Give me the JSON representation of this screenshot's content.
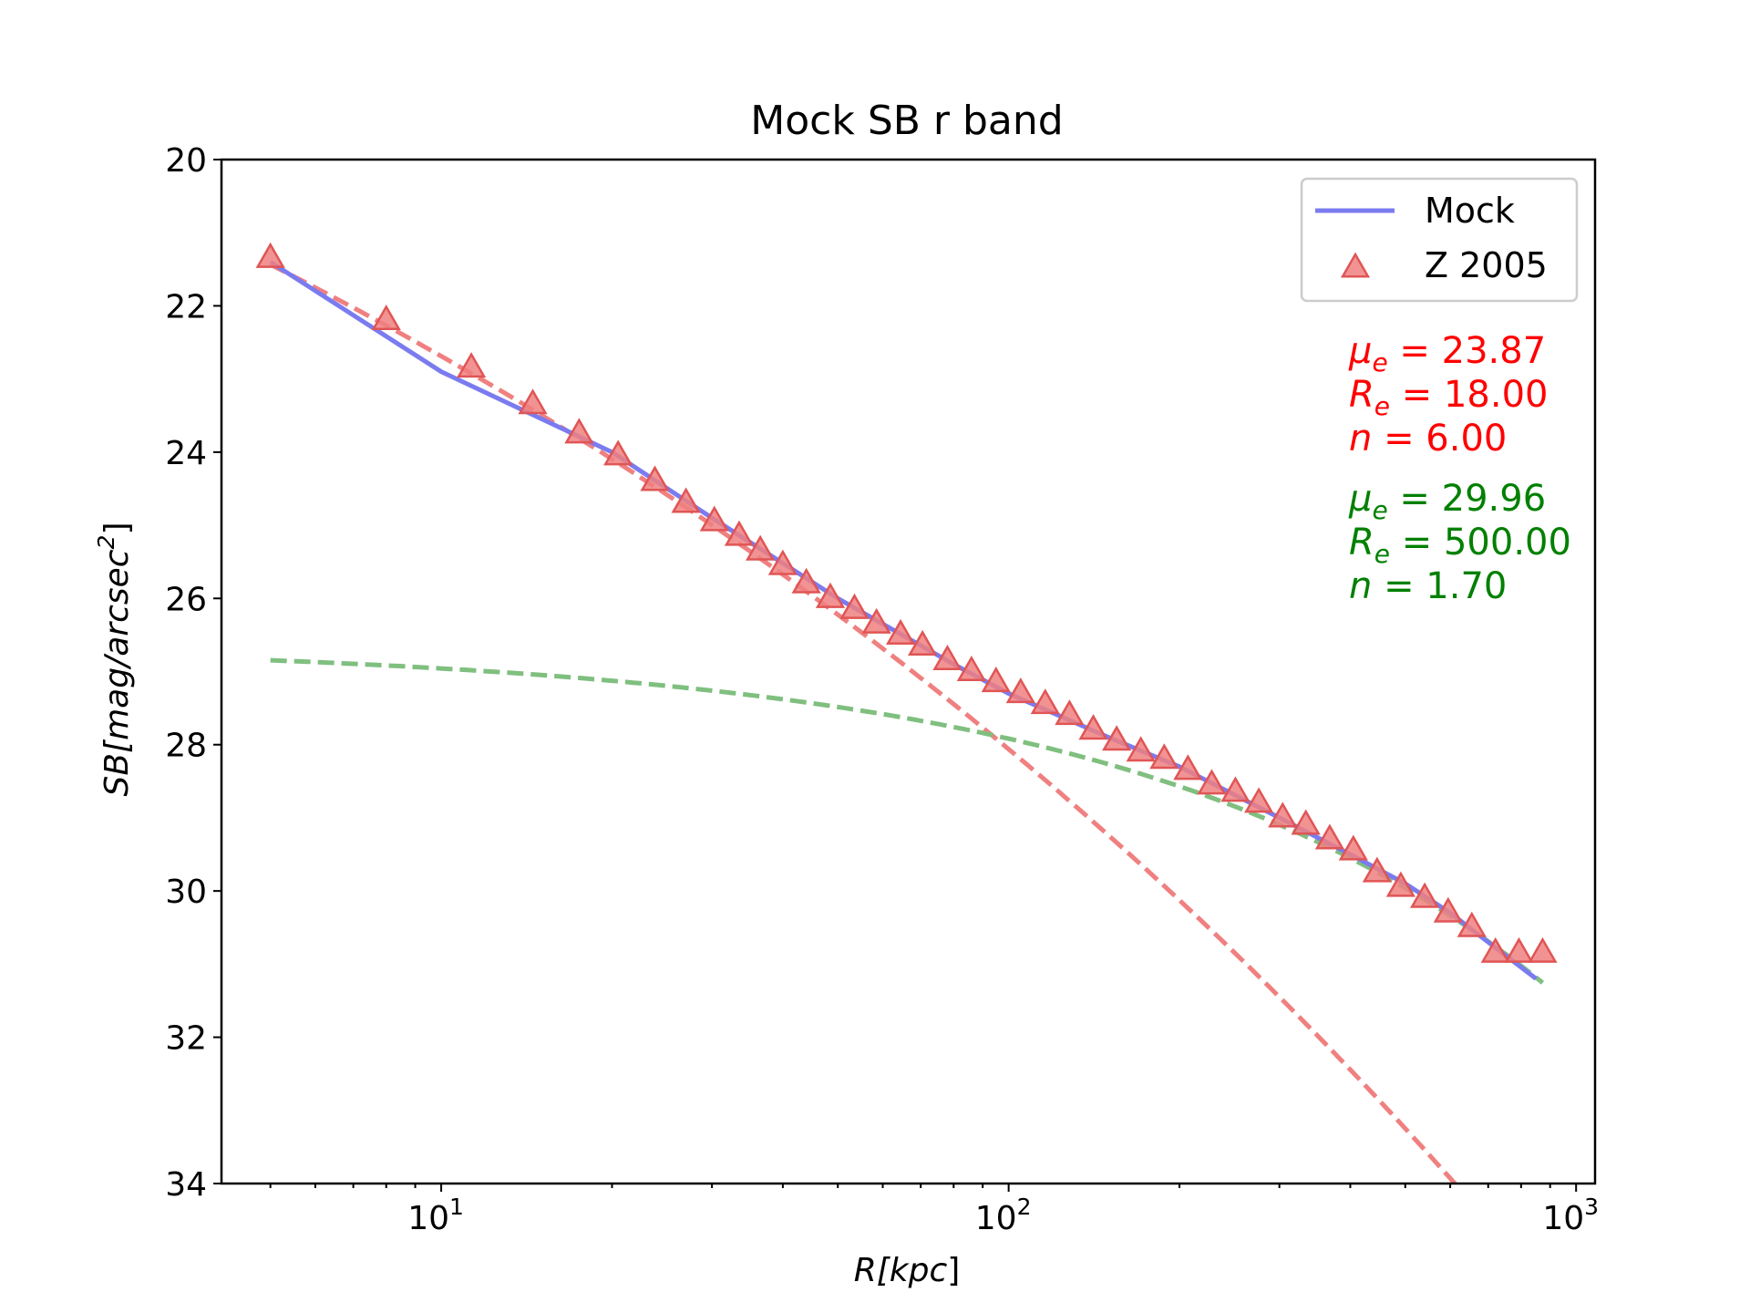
{
  "chart_data": {
    "type": "line",
    "title": "Mock SB r band",
    "xlabel": "R[kpc]",
    "ylabel_text": "SB[mag/arcsec²]",
    "ylabel_parts": [
      "SB[",
      "mag/arcsec",
      "2",
      "]"
    ],
    "xlabel_parts": [
      "R[",
      "kpc",
      "]"
    ],
    "xscale": "log",
    "xlim": [
      4.1,
      1080
    ],
    "ylim": [
      34,
      20
    ],
    "y_inverted": true,
    "xticks_major": [
      {
        "value": 10,
        "base": "10",
        "exp": "1"
      },
      {
        "value": 100,
        "base": "10",
        "exp": "2"
      },
      {
        "value": 1000,
        "base": "10",
        "exp": "3"
      }
    ],
    "yticks": [
      20,
      22,
      24,
      26,
      28,
      30,
      32,
      34
    ],
    "grid": false,
    "legend": {
      "position": "top-right",
      "entries": [
        {
          "label": "Mock",
          "kind": "line",
          "color": "#7b7bf0"
        },
        {
          "label": "Z 2005",
          "kind": "triangle",
          "color": "#f08080"
        }
      ]
    },
    "components": [
      {
        "name": "",
        "mu_e": 23.87,
        "R_e": 18.0,
        "n": 6.0,
        "color": "#f08080",
        "style": "dashed"
      },
      {
        "name": "",
        "mu_e": 29.96,
        "R_e": 500.0,
        "n": 1.7,
        "color": "#7fbf7f",
        "style": "dashed"
      }
    ],
    "annotations": [
      {
        "color": "#ff0000",
        "lines": [
          {
            "sym": "μ",
            "sub": "e",
            "val": " = 23.87"
          },
          {
            "sym": "R",
            "sub": "e",
            "val": " = 18.00"
          },
          {
            "sym": "n",
            "sub": "",
            "val": " = 6.00"
          }
        ]
      },
      {
        "color": "#008000",
        "lines": [
          {
            "sym": "μ",
            "sub": "e",
            "val": " = 29.96"
          },
          {
            "sym": "R",
            "sub": "e",
            "val": " = 500.00"
          },
          {
            "sym": "n",
            "sub": "",
            "val": " = 1.70"
          }
        ]
      }
    ],
    "series": [
      {
        "name": "Mock",
        "kind": "line",
        "color": "#7b7bf0",
        "x": [
          5,
          10,
          20,
          30,
          50,
          80,
          100,
          150,
          200,
          300,
          400,
          500,
          600,
          700,
          850
        ],
        "y": [
          21.4,
          22.9,
          24.0,
          24.9,
          26.0,
          26.9,
          27.3,
          27.9,
          28.3,
          29.0,
          29.5,
          29.9,
          30.3,
          30.7,
          31.2
        ]
      },
      {
        "name": "Z 2005",
        "kind": "scatter",
        "marker": "triangle",
        "color": "#f08080",
        "x": [
          5.0,
          8.0,
          11.3,
          14.5,
          17.5,
          20.5,
          23.8,
          27.0,
          30.3,
          33.5,
          36.5,
          40.0,
          44.0,
          48.5,
          53.5,
          58.5,
          64.5,
          70.5,
          78.0,
          86.0,
          95.0,
          105.0,
          116.0,
          128.0,
          141.0,
          155.0,
          171.0,
          188.0,
          207.0,
          228.0,
          251.0,
          276.0,
          304.0,
          334.0,
          368.0,
          405.0,
          446.0,
          491.0,
          541.0,
          595.0,
          655.0,
          721.0,
          793.0,
          873.0
        ],
        "y": [
          21.35,
          22.2,
          22.85,
          23.35,
          23.75,
          24.05,
          24.4,
          24.7,
          24.95,
          25.15,
          25.35,
          25.55,
          25.8,
          26.0,
          26.15,
          26.35,
          26.5,
          26.65,
          26.85,
          27.0,
          27.15,
          27.3,
          27.45,
          27.6,
          27.8,
          27.95,
          28.1,
          28.2,
          28.35,
          28.55,
          28.65,
          28.8,
          29.0,
          29.1,
          29.3,
          29.45,
          29.75,
          29.95,
          30.1,
          30.3,
          30.5,
          30.85,
          30.85,
          30.85
        ]
      }
    ]
  }
}
